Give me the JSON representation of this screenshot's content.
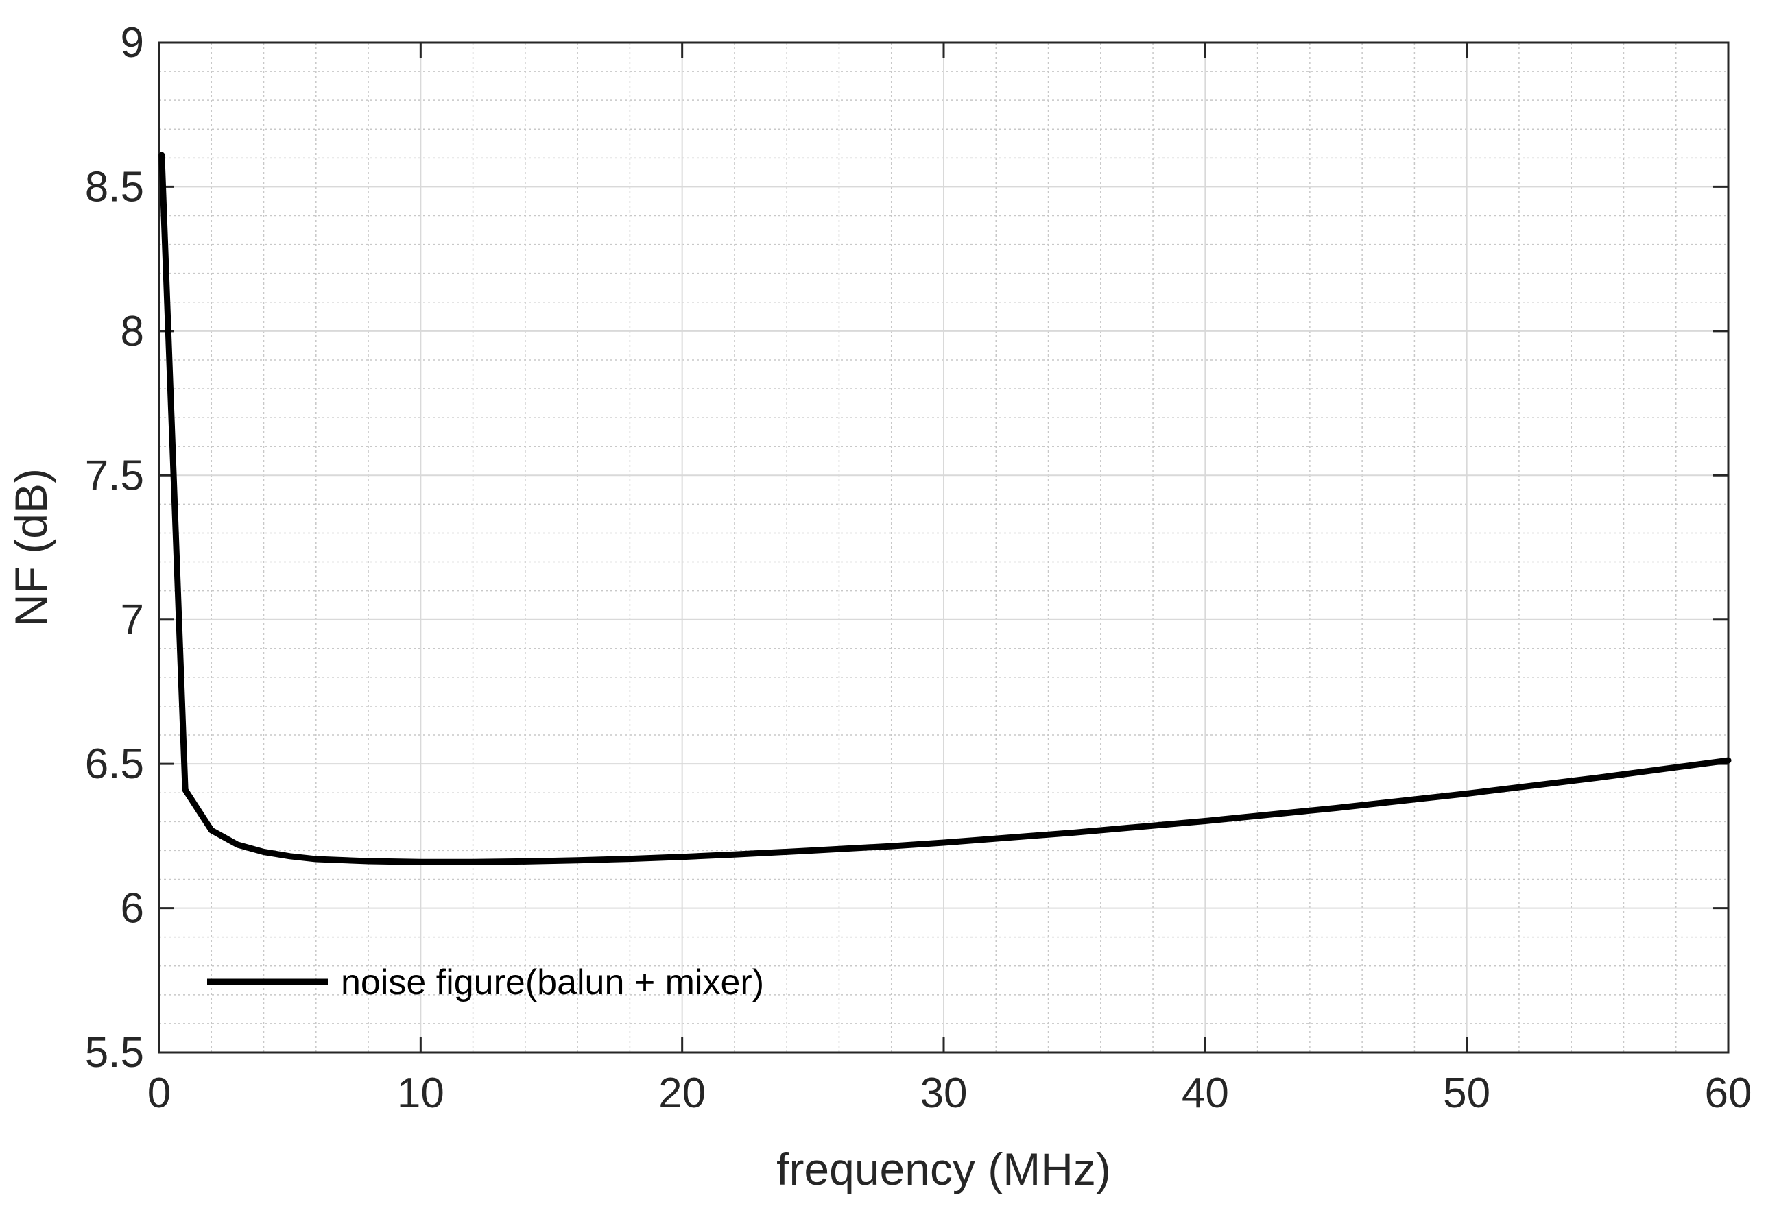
{
  "chart_data": {
    "type": "line",
    "title": "",
    "xlabel": "frequency (MHz)",
    "ylabel": "NF (dB)",
    "xlim": [
      0,
      60
    ],
    "ylim": [
      5.5,
      9
    ],
    "xticks": [
      0,
      10,
      20,
      30,
      40,
      50,
      60
    ],
    "yticks": [
      5.5,
      6,
      6.5,
      7,
      7.5,
      8,
      8.5,
      9
    ],
    "xtick_labels": [
      "0",
      "10",
      "20",
      "30",
      "40",
      "50",
      "60"
    ],
    "ytick_labels": [
      "5.5",
      "6",
      "6.5",
      "7",
      "7.5",
      "8",
      "8.5",
      "9"
    ],
    "grid": true,
    "minor_grid": true,
    "legend": {
      "placement": "bottom-left",
      "entries": [
        "noise figure(balun + mixer)"
      ]
    },
    "series": [
      {
        "name": "noise figure(balun + mixer)",
        "color": "#000000",
        "x": [
          0.1,
          1,
          2,
          3,
          4,
          5,
          6,
          8,
          10,
          12,
          14,
          16,
          18,
          20,
          22,
          25,
          28,
          30,
          35,
          40,
          45,
          50,
          55,
          60
        ],
        "y": [
          8.61,
          6.41,
          6.27,
          6.22,
          6.195,
          6.18,
          6.17,
          6.163,
          6.16,
          6.16,
          6.162,
          6.166,
          6.171,
          6.178,
          6.186,
          6.2,
          6.215,
          6.227,
          6.262,
          6.302,
          6.347,
          6.397,
          6.452,
          6.512
        ]
      }
    ]
  }
}
